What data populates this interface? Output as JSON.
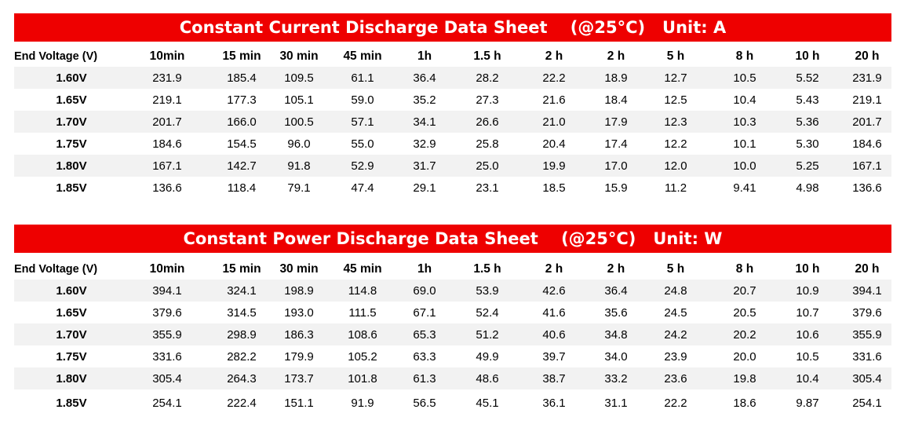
{
  "columns": [
    "10min",
    "15 min",
    "30 min",
    "45 min",
    "1h",
    "1.5 h",
    "2 h",
    "2 h",
    "5 h",
    "8 h",
    "10 h",
    "20 h"
  ],
  "end_voltage_label": "End Voltage  (V)",
  "current": {
    "title": "Constant Current Discharge Data Sheet",
    "condition": "(@25°C)",
    "unit": "Unit: A",
    "rows": [
      {
        "voltage": "1.60V",
        "values": [
          "231.9",
          "185.4",
          "109.5",
          "61.1",
          "36.4",
          "28.2",
          "22.2",
          "18.9",
          "12.7",
          "10.5",
          "5.52",
          "231.9"
        ]
      },
      {
        "voltage": "1.65V",
        "values": [
          "219.1",
          "177.3",
          "105.1",
          "59.0",
          "35.2",
          "27.3",
          "21.6",
          "18.4",
          "12.5",
          "10.4",
          "5.43",
          "219.1"
        ]
      },
      {
        "voltage": "1.70V",
        "values": [
          "201.7",
          "166.0",
          "100.5",
          "57.1",
          "34.1",
          "26.6",
          "21.0",
          "17.9",
          "12.3",
          "10.3",
          "5.36",
          "201.7"
        ]
      },
      {
        "voltage": "1.75V",
        "values": [
          "184.6",
          "154.5",
          "96.0",
          "55.0",
          "32.9",
          "25.8",
          "20.4",
          "17.4",
          "12.2",
          "10.1",
          "5.30",
          "184.6"
        ]
      },
      {
        "voltage": "1.80V",
        "values": [
          "167.1",
          "142.7",
          "91.8",
          "52.9",
          "31.7",
          "25.0",
          "19.9",
          "17.0",
          "12.0",
          "10.0",
          "5.25",
          "167.1"
        ]
      },
      {
        "voltage": "1.85V",
        "values": [
          "136.6",
          "118.4",
          "79.1",
          "47.4",
          "29.1",
          "23.1",
          "18.5",
          "15.9",
          "11.2",
          "9.41",
          "4.98",
          "136.6"
        ]
      }
    ]
  },
  "power": {
    "title": "Constant Power Discharge Data Sheet",
    "condition": "(@25°C)",
    "unit": "Unit: W",
    "rows": [
      {
        "voltage": "1.60V",
        "values": [
          "394.1",
          "324.1",
          "198.9",
          "114.8",
          "69.0",
          "53.9",
          "42.6",
          "36.4",
          "24.8",
          "20.7",
          "10.9",
          "394.1"
        ]
      },
      {
        "voltage": "1.65V",
        "values": [
          "379.6",
          "314.5",
          "193.0",
          "111.5",
          "67.1",
          "52.4",
          "41.6",
          "35.6",
          "24.5",
          "20.5",
          "10.7",
          "379.6"
        ]
      },
      {
        "voltage": "1.70V",
        "values": [
          "355.9",
          "298.9",
          "186.3",
          "108.6",
          "65.3",
          "51.2",
          "40.6",
          "34.8",
          "24.2",
          "20.2",
          "10.6",
          "355.9"
        ]
      },
      {
        "voltage": "1.75V",
        "values": [
          "331.6",
          "282.2",
          "179.9",
          "105.2",
          "63.3",
          "49.9",
          "39.7",
          "34.0",
          "23.9",
          "20.0",
          "10.5",
          "331.6"
        ]
      },
      {
        "voltage": "1.80V",
        "values": [
          "305.4",
          "264.3",
          "173.7",
          "101.8",
          "61.3",
          "48.6",
          "38.7",
          "33.2",
          "23.6",
          "19.8",
          "10.4",
          "305.4"
        ]
      },
      {
        "voltage": "1.85V",
        "values": [
          "254.1",
          "222.4",
          "151.1",
          "91.9",
          "56.5",
          "45.1",
          "36.1",
          "31.1",
          "22.2",
          "18.6",
          "9.87",
          "254.1"
        ]
      }
    ]
  }
}
